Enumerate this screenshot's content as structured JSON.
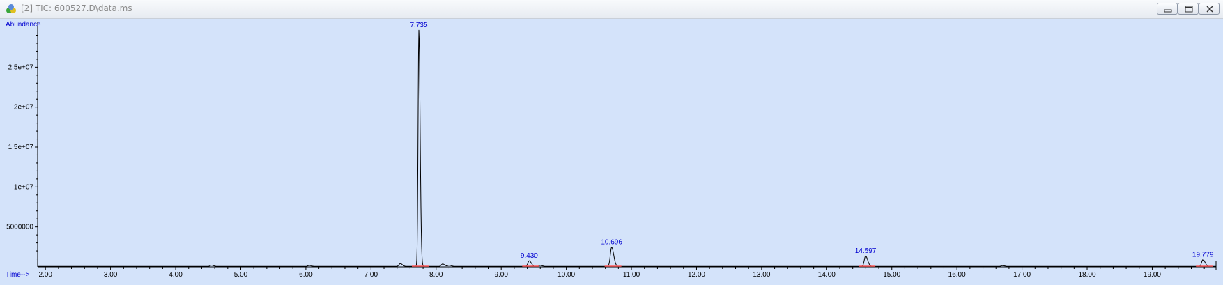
{
  "window": {
    "title": "[2] TIC: 600527.D\\data.ms",
    "icon": "chemstation-app-icon",
    "buttons": [
      "minimize",
      "restore",
      "close"
    ]
  },
  "colors": {
    "plot_background": "#d4e3fa",
    "trace": "#000000",
    "labels": "#0000d0",
    "baseline_marks": "#ff5a5a"
  },
  "chart_data": {
    "type": "line",
    "ylabel": "Abundance",
    "xlabel": "Time-->",
    "xlim": [
      1.88,
      19.98
    ],
    "ylim": [
      0,
      30700000
    ],
    "xticks": [
      "2.00",
      "3.00",
      "4.00",
      "5.00",
      "6.00",
      "7.00",
      "8.00",
      "9.00",
      "10.00",
      "11.00",
      "12.00",
      "13.00",
      "14.00",
      "15.00",
      "16.00",
      "17.00",
      "18.00",
      "19.00"
    ],
    "yticks": [
      "5000000",
      "1e+07",
      "1.5e+07",
      "2e+07",
      "2.5e+07"
    ],
    "ytick_values": [
      5000000,
      10000000,
      15000000,
      20000000,
      25000000
    ],
    "peaks": [
      {
        "time": 7.735,
        "label": "7.735",
        "abundance": 29600000
      },
      {
        "time": 9.43,
        "label": "9.430",
        "abundance": 700000
      },
      {
        "time": 10.696,
        "label": "10.696",
        "abundance": 2400000
      },
      {
        "time": 14.597,
        "label": "14.597",
        "abundance": 1300000
      },
      {
        "time": 19.779,
        "label": "19.779",
        "abundance": 850000
      }
    ],
    "minor_peaks": [
      {
        "time": 4.55,
        "abundance": 150000
      },
      {
        "time": 6.05,
        "abundance": 120000
      },
      {
        "time": 7.45,
        "abundance": 350000
      },
      {
        "time": 8.1,
        "abundance": 300000
      },
      {
        "time": 8.2,
        "abundance": 150000
      },
      {
        "time": 9.6,
        "abundance": 120000
      },
      {
        "time": 16.7,
        "abundance": 100000
      }
    ],
    "grid": false
  }
}
